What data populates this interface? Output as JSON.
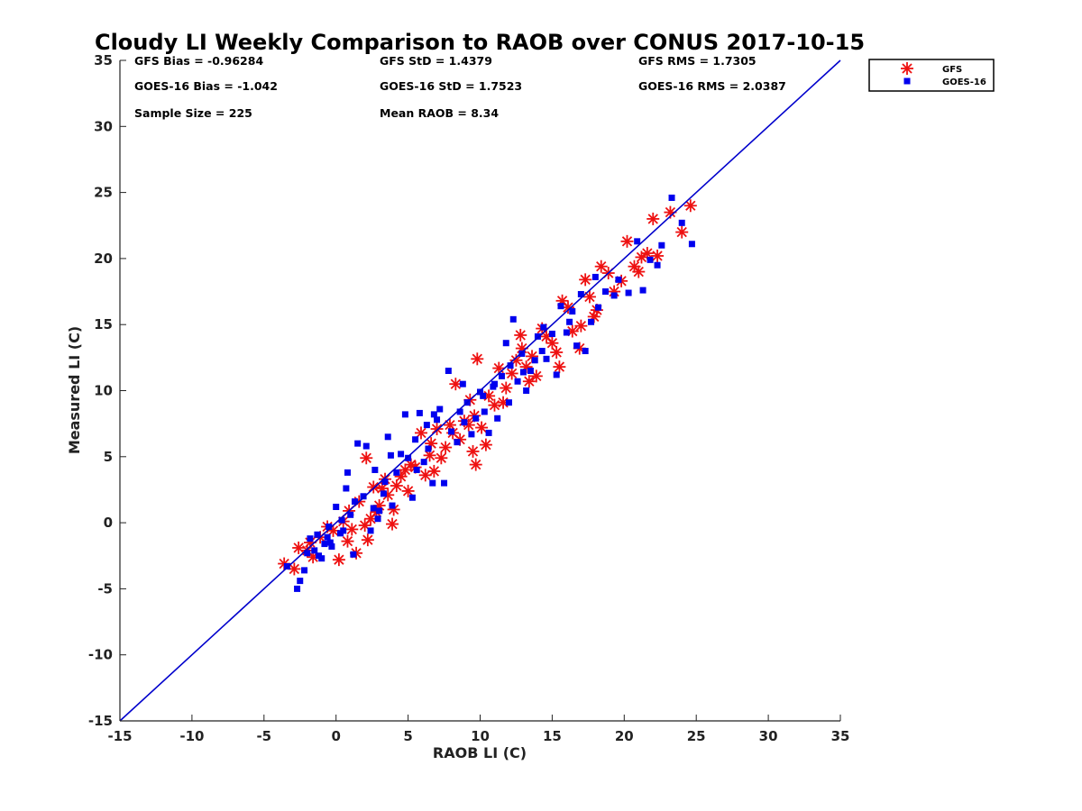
{
  "chart_data": {
    "type": "scatter",
    "title": "Cloudy LI Weekly Comparison to RAOB over CONUS 2017-10-15",
    "xlabel": "RAOB LI (C)",
    "ylabel": "Measured LI (C)",
    "xlim": [
      -15,
      35
    ],
    "ylim": [
      -15,
      35
    ],
    "xticks": [
      "-15",
      "-10",
      "-5",
      "0",
      "5",
      "10",
      "15",
      "20",
      "25",
      "30",
      "35"
    ],
    "yticks": [
      "-15",
      "-10",
      "-5",
      "0",
      "5",
      "10",
      "15",
      "20",
      "25",
      "30",
      "35"
    ],
    "grid": false,
    "legend_position": "outside-top-right",
    "one_to_one_line": {
      "color": "#0000cc",
      "from": [
        -15,
        -15
      ],
      "to": [
        35,
        35
      ]
    },
    "stats": {
      "gfs_bias": "GFS Bias = -0.96284",
      "goes_bias": "GOES-16 Bias = -1.042",
      "sample_size": "Sample Size = 225",
      "gfs_std": "GFS StD = 1.4379",
      "goes_std": "GOES-16 StD = 1.7523",
      "mean_raob": "Mean RAOB = 8.34",
      "gfs_rms": "GFS RMS = 1.7305",
      "goes_rms": "GOES-16 RMS = 2.0387"
    },
    "series": [
      {
        "name": "GFS",
        "marker": "asterisk",
        "color": "#ee1111",
        "points": [
          [
            -3.6,
            -3.1
          ],
          [
            -2.9,
            -3.5
          ],
          [
            -2.6,
            -1.9
          ],
          [
            -2.0,
            -2.1
          ],
          [
            -1.6,
            -2.6
          ],
          [
            -1.1,
            -1.1
          ],
          [
            -0.6,
            -0.3
          ],
          [
            -0.2,
            -0.6
          ],
          [
            0.2,
            -2.8
          ],
          [
            0.5,
            0.1
          ],
          [
            0.8,
            -1.4
          ],
          [
            1.1,
            -0.5
          ],
          [
            1.4,
            -2.3
          ],
          [
            1.6,
            1.6
          ],
          [
            2.0,
            -0.2
          ],
          [
            2.2,
            -1.3
          ],
          [
            2.4,
            0.3
          ],
          [
            2.6,
            2.7
          ],
          [
            2.8,
            0.8
          ],
          [
            3.0,
            1.3
          ],
          [
            3.4,
            3.3
          ],
          [
            3.6,
            2.1
          ],
          [
            3.9,
            -0.1
          ],
          [
            4.0,
            1.0
          ],
          [
            4.2,
            2.8
          ],
          [
            4.5,
            3.5
          ],
          [
            4.8,
            4.0
          ],
          [
            5.0,
            2.4
          ],
          [
            5.2,
            4.4
          ],
          [
            5.5,
            4.2
          ],
          [
            5.9,
            6.8
          ],
          [
            6.2,
            3.6
          ],
          [
            6.5,
            5.1
          ],
          [
            6.8,
            3.9
          ],
          [
            7.0,
            7.1
          ],
          [
            7.3,
            4.9
          ],
          [
            7.6,
            5.7
          ],
          [
            7.9,
            7.4
          ],
          [
            8.3,
            10.5
          ],
          [
            8.6,
            6.3
          ],
          [
            8.9,
            7.7
          ],
          [
            9.2,
            7.4
          ],
          [
            9.5,
            5.4
          ],
          [
            9.6,
            8.1
          ],
          [
            9.8,
            12.4
          ],
          [
            10.1,
            7.2
          ],
          [
            10.6,
            9.6
          ],
          [
            11.0,
            8.9
          ],
          [
            11.3,
            11.7
          ],
          [
            11.8,
            10.2
          ],
          [
            12.2,
            11.3
          ],
          [
            12.5,
            12.3
          ],
          [
            12.8,
            14.2
          ],
          [
            13.2,
            11.8
          ],
          [
            13.6,
            12.6
          ],
          [
            13.9,
            11.1
          ],
          [
            14.3,
            14.7
          ],
          [
            14.6,
            14.1
          ],
          [
            15.0,
            13.6
          ],
          [
            15.3,
            12.9
          ],
          [
            15.7,
            16.8
          ],
          [
            16.1,
            16.3
          ],
          [
            16.4,
            14.5
          ],
          [
            16.9,
            13.2
          ],
          [
            17.3,
            18.4
          ],
          [
            17.6,
            17.1
          ],
          [
            17.9,
            15.6
          ],
          [
            18.4,
            19.4
          ],
          [
            18.9,
            18.9
          ],
          [
            19.3,
            17.5
          ],
          [
            19.8,
            18.3
          ],
          [
            20.2,
            21.3
          ],
          [
            20.7,
            19.4
          ],
          [
            21.2,
            20.1
          ],
          [
            21.6,
            20.4
          ],
          [
            22.0,
            23.0
          ],
          [
            22.3,
            20.2
          ],
          [
            23.2,
            23.5
          ],
          [
            24.0,
            22.0
          ],
          [
            24.6,
            24.0
          ],
          [
            -1.8,
            -1.5
          ],
          [
            0.9,
            0.9
          ],
          [
            2.1,
            4.9
          ],
          [
            3.2,
            2.6
          ],
          [
            6.6,
            6.0
          ],
          [
            8.1,
            6.8
          ],
          [
            9.3,
            9.3
          ],
          [
            10.4,
            5.9
          ],
          [
            11.6,
            9.1
          ],
          [
            12.9,
            13.2
          ],
          [
            13.4,
            10.7
          ],
          [
            15.5,
            11.8
          ],
          [
            17.0,
            14.9
          ],
          [
            18.1,
            16.1
          ],
          [
            21.0,
            19.0
          ],
          [
            9.7,
            4.4
          ]
        ]
      },
      {
        "name": "GOES-16",
        "marker": "square",
        "color": "#0000ee",
        "points": [
          [
            -3.4,
            -3.3
          ],
          [
            -2.7,
            -5.0
          ],
          [
            -2.5,
            -4.4
          ],
          [
            -2.2,
            -3.6
          ],
          [
            -1.8,
            -1.2
          ],
          [
            -1.5,
            -2.1
          ],
          [
            -1.3,
            -0.9
          ],
          [
            -1.0,
            -2.7
          ],
          [
            -0.8,
            -1.6
          ],
          [
            -0.5,
            -0.3
          ],
          [
            -0.3,
            -1.8
          ],
          [
            0.0,
            1.2
          ],
          [
            0.3,
            -0.8
          ],
          [
            0.7,
            2.6
          ],
          [
            0.8,
            3.8
          ],
          [
            1.2,
            -2.4
          ],
          [
            1.5,
            6.0
          ],
          [
            1.9,
            2.0
          ],
          [
            2.1,
            5.8
          ],
          [
            2.4,
            -0.6
          ],
          [
            2.7,
            4.0
          ],
          [
            3.0,
            0.9
          ],
          [
            3.3,
            2.2
          ],
          [
            3.6,
            6.5
          ],
          [
            3.9,
            1.3
          ],
          [
            4.2,
            3.8
          ],
          [
            4.5,
            5.2
          ],
          [
            4.8,
            8.2
          ],
          [
            5.0,
            4.9
          ],
          [
            5.3,
            1.9
          ],
          [
            5.5,
            6.3
          ],
          [
            5.8,
            8.3
          ],
          [
            6.1,
            4.6
          ],
          [
            6.4,
            5.6
          ],
          [
            6.7,
            3.0
          ],
          [
            7.0,
            7.8
          ],
          [
            7.2,
            8.6
          ],
          [
            7.5,
            3.0
          ],
          [
            7.8,
            11.5
          ],
          [
            8.0,
            6.9
          ],
          [
            8.4,
            6.1
          ],
          [
            8.6,
            8.4
          ],
          [
            8.8,
            10.5
          ],
          [
            9.1,
            9.1
          ],
          [
            9.4,
            6.7
          ],
          [
            9.7,
            7.9
          ],
          [
            10.0,
            9.9
          ],
          [
            10.3,
            8.4
          ],
          [
            10.6,
            6.8
          ],
          [
            10.9,
            10.3
          ],
          [
            11.2,
            7.9
          ],
          [
            11.5,
            11.1
          ],
          [
            11.8,
            13.6
          ],
          [
            12.0,
            9.1
          ],
          [
            12.3,
            15.4
          ],
          [
            12.6,
            10.7
          ],
          [
            12.9,
            12.8
          ],
          [
            13.2,
            10.0
          ],
          [
            13.5,
            11.5
          ],
          [
            13.8,
            12.3
          ],
          [
            14.0,
            14.1
          ],
          [
            14.3,
            13.0
          ],
          [
            14.6,
            12.4
          ],
          [
            15.0,
            14.3
          ],
          [
            15.3,
            11.2
          ],
          [
            15.6,
            16.4
          ],
          [
            16.0,
            14.4
          ],
          [
            16.4,
            16.0
          ],
          [
            16.7,
            13.4
          ],
          [
            17.0,
            17.3
          ],
          [
            17.3,
            13.0
          ],
          [
            17.7,
            15.2
          ],
          [
            18.2,
            16.3
          ],
          [
            18.7,
            17.5
          ],
          [
            19.3,
            17.2
          ],
          [
            19.6,
            18.4
          ],
          [
            20.3,
            17.4
          ],
          [
            20.9,
            21.3
          ],
          [
            21.3,
            17.6
          ],
          [
            21.8,
            19.9
          ],
          [
            22.3,
            19.5
          ],
          [
            22.6,
            21.0
          ],
          [
            23.3,
            24.6
          ],
          [
            24.0,
            22.7
          ],
          [
            24.7,
            21.1
          ],
          [
            -0.6,
            -1.1
          ],
          [
            0.4,
            0.2
          ],
          [
            1.0,
            0.6
          ],
          [
            2.6,
            1.1
          ],
          [
            3.4,
            3.1
          ],
          [
            6.3,
            7.4
          ],
          [
            10.2,
            9.6
          ],
          [
            12.1,
            11.9
          ],
          [
            14.4,
            14.8
          ],
          [
            16.2,
            15.2
          ],
          [
            18.0,
            18.6
          ],
          [
            -2.0,
            -2.3
          ],
          [
            -1.2,
            -2.5
          ],
          [
            -0.4,
            -1.5
          ],
          [
            0.5,
            -0.6
          ],
          [
            1.3,
            1.6
          ],
          [
            2.9,
            0.3
          ],
          [
            3.8,
            5.1
          ],
          [
            5.6,
            4.0
          ],
          [
            6.8,
            8.2
          ],
          [
            8.9,
            7.6
          ],
          [
            11.0,
            10.5
          ],
          [
            13.0,
            11.4
          ]
        ]
      }
    ]
  }
}
